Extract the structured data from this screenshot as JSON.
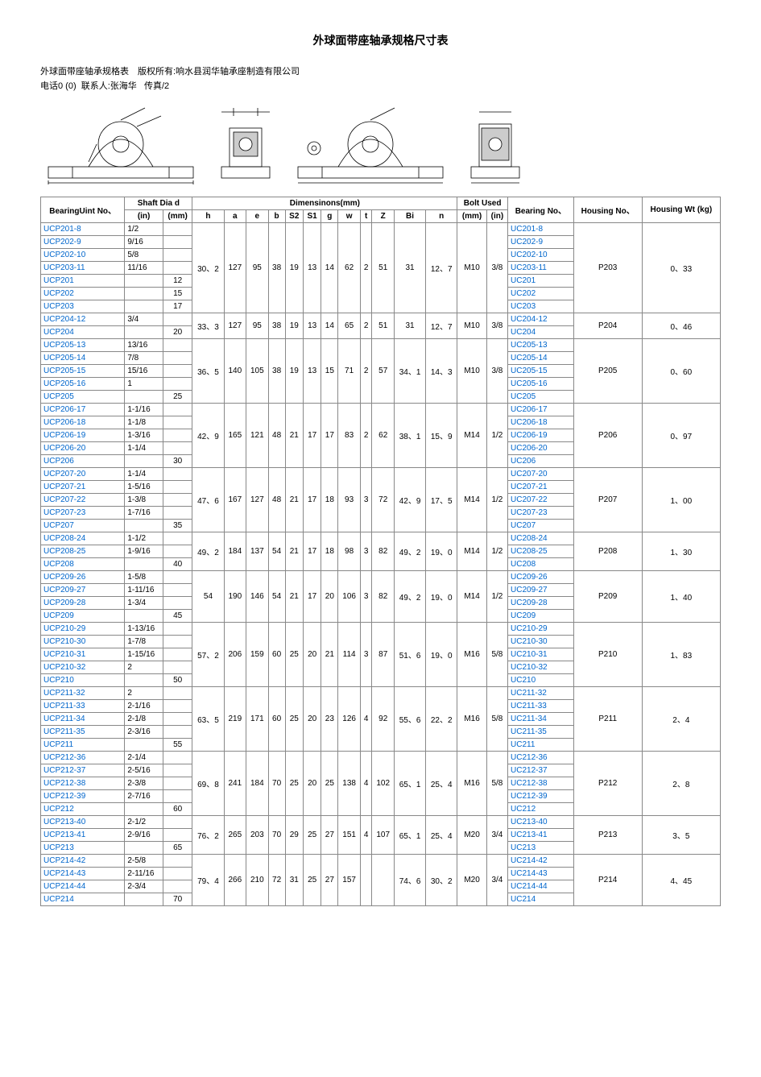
{
  "title": "外球面带座轴承规格尺寸表",
  "meta1_label": "外球面带座轴承规格表　版权所有:响水县润华轴承座制造有限公司",
  "meta2_phone_label": "电话",
  "meta2_phone": "0 (0)",
  "meta2_contact_label": "联系人:张海华",
  "meta2_fax_label": "传真",
  "meta2_fax": "/2",
  "headers": {
    "unit_no": "BearingUint No、",
    "shaft": "Shaft Dia d",
    "dims": "Dimensinons(mm)",
    "bolt": "Bolt Used",
    "bearing_no": "Bearing No、",
    "housing_no": "Housing No、",
    "wt": "Housing Wt (kg)",
    "in": "(in)",
    "mm": "(mm)",
    "cols": [
      "h",
      "a",
      "e",
      "b",
      "S2",
      "S1",
      "g",
      "w",
      "t",
      "Z",
      "Bi",
      "n",
      "(mm)",
      "(in)"
    ]
  },
  "groups": [
    {
      "rows": [
        {
          "u": "UCP201-8",
          "in": "1/2",
          "mm": "",
          "bn": "UC201-8"
        },
        {
          "u": "UCP202-9",
          "in": "9/16",
          "mm": "",
          "bn": "UC202-9"
        },
        {
          "u": "UCP202-10",
          "in": "5/8",
          "mm": "",
          "bn": "UC202-10"
        },
        {
          "u": "UCP203-11",
          "in": "11/16",
          "mm": "",
          "bn": "UC203-11"
        },
        {
          "u": "UCP201",
          "in": "",
          "mm": "12",
          "bn": "UC201"
        },
        {
          "u": "UCP202",
          "in": "",
          "mm": "15",
          "bn": "UC202"
        },
        {
          "u": "UCP203",
          "in": "",
          "mm": "17",
          "bn": "UC203"
        }
      ],
      "d": [
        "30、2",
        "127",
        "95",
        "38",
        "19",
        "13",
        "14",
        "62",
        "2",
        "51",
        "31",
        "12、7",
        "M10",
        "3/8"
      ],
      "hn": "P203",
      "wt": "0、33"
    },
    {
      "rows": [
        {
          "u": "UCP204-12",
          "in": "3/4",
          "mm": "",
          "bn": "UC204-12"
        },
        {
          "u": "UCP204",
          "in": "",
          "mm": "20",
          "bn": "UC204"
        }
      ],
      "d": [
        "33、3",
        "127",
        "95",
        "38",
        "19",
        "13",
        "14",
        "65",
        "2",
        "51",
        "31",
        "12、7",
        "M10",
        "3/8"
      ],
      "hn": "P204",
      "wt": "0、46"
    },
    {
      "rows": [
        {
          "u": "UCP205-13",
          "in": "13/16",
          "mm": "",
          "bn": "UC205-13"
        },
        {
          "u": "UCP205-14",
          "in": "7/8",
          "mm": "",
          "bn": "UC205-14"
        },
        {
          "u": "UCP205-15",
          "in": "15/16",
          "mm": "",
          "bn": "UC205-15"
        },
        {
          "u": "UCP205-16",
          "in": "1",
          "mm": "",
          "bn": "UC205-16"
        },
        {
          "u": "UCP205",
          "in": "",
          "mm": "25",
          "bn": "UC205"
        }
      ],
      "d": [
        "36、5",
        "140",
        "105",
        "38",
        "19",
        "13",
        "15",
        "71",
        "2",
        "57",
        "34、1",
        "14、3",
        "M10",
        "3/8"
      ],
      "hn": "P205",
      "wt": "0、60"
    },
    {
      "rows": [
        {
          "u": "UCP206-17",
          "in": "1-1/16",
          "mm": "",
          "bn": "UC206-17"
        },
        {
          "u": "UCP206-18",
          "in": "1-1/8",
          "mm": "",
          "bn": "UC206-18"
        },
        {
          "u": "UCP206-19",
          "in": "1-3/16",
          "mm": "",
          "bn": "UC206-19"
        },
        {
          "u": "UCP206-20",
          "in": "1-1/4",
          "mm": "",
          "bn": "UC206-20"
        },
        {
          "u": "UCP206",
          "in": "",
          "mm": "30",
          "bn": "UC206"
        }
      ],
      "d": [
        "42、9",
        "165",
        "121",
        "48",
        "21",
        "17",
        "17",
        "83",
        "2",
        "62",
        "38、1",
        "15、9",
        "M14",
        "1/2"
      ],
      "hn": "P206",
      "wt": "0、97"
    },
    {
      "rows": [
        {
          "u": "UCP207-20",
          "in": "1-1/4",
          "mm": "",
          "bn": "UC207-20"
        },
        {
          "u": "UCP207-21",
          "in": "1-5/16",
          "mm": "",
          "bn": "UC207-21"
        },
        {
          "u": "UCP207-22",
          "in": "1-3/8",
          "mm": "",
          "bn": "UC207-22"
        },
        {
          "u": "UCP207-23",
          "in": "1-7/16",
          "mm": "",
          "bn": "UC207-23"
        },
        {
          "u": "UCP207",
          "in": "",
          "mm": "35",
          "bn": "UC207"
        }
      ],
      "d": [
        "47、6",
        "167",
        "127",
        "48",
        "21",
        "17",
        "18",
        "93",
        "3",
        "72",
        "42、9",
        "17、5",
        "M14",
        "1/2"
      ],
      "hn": "P207",
      "wt": "1、00"
    },
    {
      "rows": [
        {
          "u": "UCP208-24",
          "in": "1-1/2",
          "mm": "",
          "bn": "UC208-24"
        },
        {
          "u": "UCP208-25",
          "in": "1-9/16",
          "mm": "",
          "bn": "UC208-25"
        },
        {
          "u": "UCP208",
          "in": "",
          "mm": "40",
          "bn": "UC208"
        }
      ],
      "d": [
        "49、2",
        "184",
        "137",
        "54",
        "21",
        "17",
        "18",
        "98",
        "3",
        "82",
        "49、2",
        "19、0",
        "M14",
        "1/2"
      ],
      "hn": "P208",
      "wt": "1、30"
    },
    {
      "rows": [
        {
          "u": "UCP209-26",
          "in": "1-5/8",
          "mm": "",
          "bn": "UC209-26"
        },
        {
          "u": "UCP209-27",
          "in": "1-11/16",
          "mm": "",
          "bn": "UC209-27"
        },
        {
          "u": "UCP209-28",
          "in": "1-3/4",
          "mm": "",
          "bn": "UC209-28"
        },
        {
          "u": "UCP209",
          "in": "",
          "mm": "45",
          "bn": "UC209"
        }
      ],
      "d": [
        "54",
        "190",
        "146",
        "54",
        "21",
        "17",
        "20",
        "106",
        "3",
        "82",
        "49、2",
        "19、0",
        "M14",
        "1/2"
      ],
      "hn": "P209",
      "wt": "1、40"
    },
    {
      "rows": [
        {
          "u": "UCP210-29",
          "in": "1-13/16",
          "mm": "",
          "bn": "UC210-29"
        },
        {
          "u": "UCP210-30",
          "in": "1-7/8",
          "mm": "",
          "bn": "UC210-30"
        },
        {
          "u": "UCP210-31",
          "in": "1-15/16",
          "mm": "",
          "bn": "UC210-31"
        },
        {
          "u": "UCP210-32",
          "in": "2",
          "mm": "",
          "bn": "UC210-32"
        },
        {
          "u": "UCP210",
          "in": "",
          "mm": "50",
          "bn": "UC210"
        }
      ],
      "d": [
        "57、2",
        "206",
        "159",
        "60",
        "25",
        "20",
        "21",
        "114",
        "3",
        "87",
        "51、6",
        "19、0",
        "M16",
        "5/8"
      ],
      "hn": "P210",
      "wt": "1、83"
    },
    {
      "rows": [
        {
          "u": "UCP211-32",
          "in": "2",
          "mm": "",
          "bn": "UC211-32"
        },
        {
          "u": "UCP211-33",
          "in": "2-1/16",
          "mm": "",
          "bn": "UC211-33"
        },
        {
          "u": "UCP211-34",
          "in": "2-1/8",
          "mm": "",
          "bn": "UC211-34"
        },
        {
          "u": "UCP211-35",
          "in": "2-3/16",
          "mm": "",
          "bn": "UC211-35"
        },
        {
          "u": "UCP211",
          "in": "",
          "mm": "55",
          "bn": "UC211"
        }
      ],
      "d": [
        "63、5",
        "219",
        "171",
        "60",
        "25",
        "20",
        "23",
        "126",
        "4",
        "92",
        "55、6",
        "22、2",
        "M16",
        "5/8"
      ],
      "hn": "P211",
      "wt": "2、4"
    },
    {
      "rows": [
        {
          "u": "UCP212-36",
          "in": "2-1/4",
          "mm": "",
          "bn": "UC212-36"
        },
        {
          "u": "UCP212-37",
          "in": "2-5/16",
          "mm": "",
          "bn": "UC212-37"
        },
        {
          "u": "UCP212-38",
          "in": "2-3/8",
          "mm": "",
          "bn": "UC212-38"
        },
        {
          "u": "UCP212-39",
          "in": "2-7/16",
          "mm": "",
          "bn": "UC212-39"
        },
        {
          "u": "UCP212",
          "in": "",
          "mm": "60",
          "bn": "UC212"
        }
      ],
      "d": [
        "69、8",
        "241",
        "184",
        "70",
        "25",
        "20",
        "25",
        "138",
        "4",
        "102",
        "65、1",
        "25、4",
        "M16",
        "5/8"
      ],
      "hn": "P212",
      "wt": "2、8"
    },
    {
      "rows": [
        {
          "u": "UCP213-40",
          "in": "2-1/2",
          "mm": "",
          "bn": "UC213-40"
        },
        {
          "u": "UCP213-41",
          "in": "2-9/16",
          "mm": "",
          "bn": "UC213-41"
        },
        {
          "u": "UCP213",
          "in": "",
          "mm": "65",
          "bn": "UC213"
        }
      ],
      "d": [
        "76、2",
        "265",
        "203",
        "70",
        "29",
        "25",
        "27",
        "151",
        "4",
        "107",
        "65、1",
        "25、4",
        "M20",
        "3/4"
      ],
      "hn": "P213",
      "wt": "3、5"
    },
    {
      "rows": [
        {
          "u": "UCP214-42",
          "in": "2-5/8",
          "mm": "",
          "bn": "UC214-42"
        },
        {
          "u": "UCP214-43",
          "in": "2-11/16",
          "mm": "",
          "bn": "UC214-43"
        },
        {
          "u": "UCP214-44",
          "in": "2-3/4",
          "mm": "",
          "bn": "UC214-44"
        },
        {
          "u": "UCP214",
          "in": "",
          "mm": "70",
          "bn": "UC214"
        }
      ],
      "d": [
        "79、4",
        "266",
        "210",
        "72",
        "31",
        "25",
        "27",
        "157",
        "",
        "",
        "74、6",
        "30、2",
        "M20",
        "3/4"
      ],
      "hn": "P214",
      "wt": "4、45"
    }
  ]
}
